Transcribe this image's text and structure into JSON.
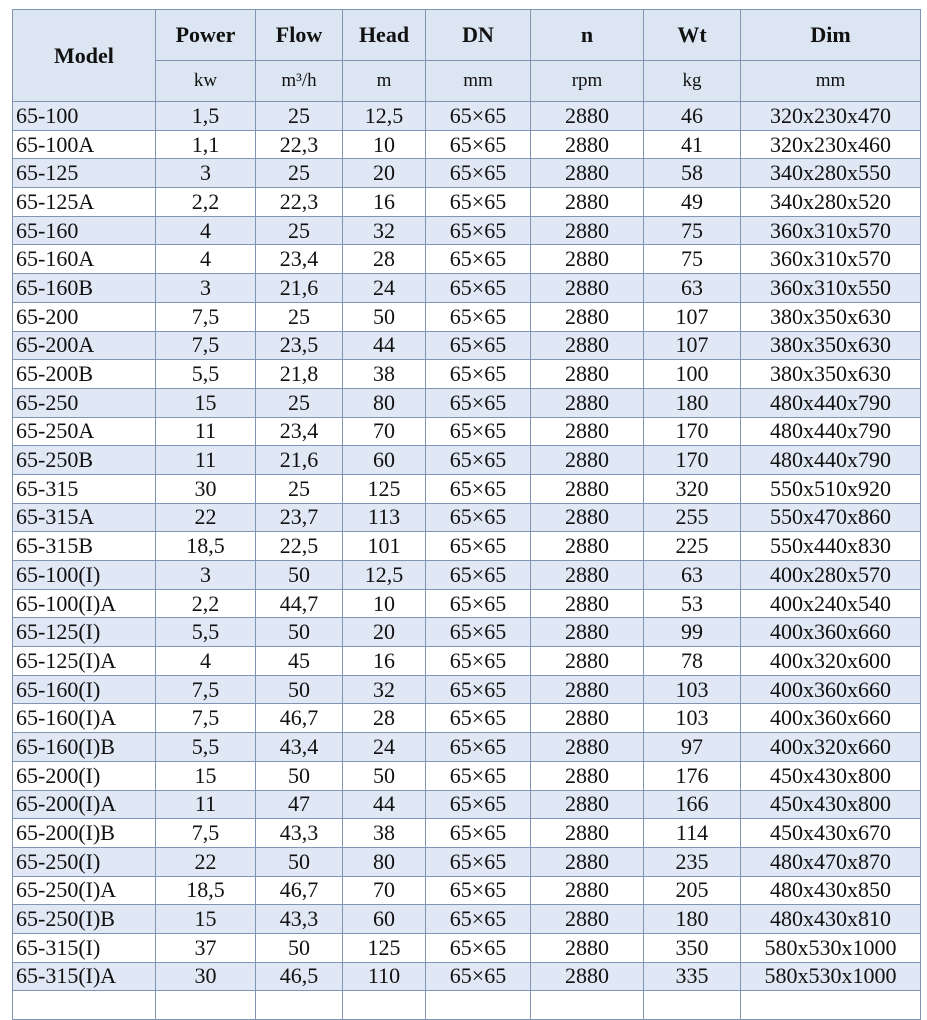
{
  "table": {
    "header": {
      "names": [
        "Model",
        "Power",
        "Flow",
        "Head",
        "DN",
        "n",
        "Wt",
        "Dim"
      ],
      "units": [
        "kw",
        "m³/h",
        "m",
        "mm",
        "rpm",
        "kg",
        "mm"
      ]
    },
    "rows": [
      [
        "65-100",
        "1,5",
        "25",
        "12,5",
        "65×65",
        "2880",
        "46",
        "320x230x470"
      ],
      [
        "65-100A",
        "1,1",
        "22,3",
        "10",
        "65×65",
        "2880",
        "41",
        "320x230x460"
      ],
      [
        "65-125",
        "3",
        "25",
        "20",
        "65×65",
        "2880",
        "58",
        "340x280x550"
      ],
      [
        "65-125A",
        "2,2",
        "22,3",
        "16",
        "65×65",
        "2880",
        "49",
        "340x280x520"
      ],
      [
        "65-160",
        "4",
        "25",
        "32",
        "65×65",
        "2880",
        "75",
        "360x310x570"
      ],
      [
        "65-160A",
        "4",
        "23,4",
        "28",
        "65×65",
        "2880",
        "75",
        "360x310x570"
      ],
      [
        "65-160B",
        "3",
        "21,6",
        "24",
        "65×65",
        "2880",
        "63",
        "360x310x550"
      ],
      [
        "65-200",
        "7,5",
        "25",
        "50",
        "65×65",
        "2880",
        "107",
        "380x350x630"
      ],
      [
        "65-200A",
        "7,5",
        "23,5",
        "44",
        "65×65",
        "2880",
        "107",
        "380x350x630"
      ],
      [
        "65-200B",
        "5,5",
        "21,8",
        "38",
        "65×65",
        "2880",
        "100",
        "380x350x630"
      ],
      [
        "65-250",
        "15",
        "25",
        "80",
        "65×65",
        "2880",
        "180",
        "480x440x790"
      ],
      [
        "65-250A",
        "11",
        "23,4",
        "70",
        "65×65",
        "2880",
        "170",
        "480x440x790"
      ],
      [
        "65-250B",
        "11",
        "21,6",
        "60",
        "65×65",
        "2880",
        "170",
        "480x440x790"
      ],
      [
        "65-315",
        "30",
        "25",
        "125",
        "65×65",
        "2880",
        "320",
        "550x510x920"
      ],
      [
        "65-315A",
        "22",
        "23,7",
        "113",
        "65×65",
        "2880",
        "255",
        "550x470x860"
      ],
      [
        "65-315B",
        "18,5",
        "22,5",
        "101",
        "65×65",
        "2880",
        "225",
        "550x440x830"
      ],
      [
        "65-100(I)",
        "3",
        "50",
        "12,5",
        "65×65",
        "2880",
        "63",
        "400x280x570"
      ],
      [
        "65-100(I)A",
        "2,2",
        "44,7",
        "10",
        "65×65",
        "2880",
        "53",
        "400x240x540"
      ],
      [
        "65-125(I)",
        "5,5",
        "50",
        "20",
        "65×65",
        "2880",
        "99",
        "400x360x660"
      ],
      [
        "65-125(I)A",
        "4",
        "45",
        "16",
        "65×65",
        "2880",
        "78",
        "400x320x600"
      ],
      [
        "65-160(I)",
        "7,5",
        "50",
        "32",
        "65×65",
        "2880",
        "103",
        "400x360x660"
      ],
      [
        "65-160(I)A",
        "7,5",
        "46,7",
        "28",
        "65×65",
        "2880",
        "103",
        "400x360x660"
      ],
      [
        "65-160(I)B",
        "5,5",
        "43,4",
        "24",
        "65×65",
        "2880",
        "97",
        "400x320x660"
      ],
      [
        "65-200(I)",
        "15",
        "50",
        "50",
        "65×65",
        "2880",
        "176",
        "450x430x800"
      ],
      [
        "65-200(I)A",
        "11",
        "47",
        "44",
        "65×65",
        "2880",
        "166",
        "450x430x800"
      ],
      [
        "65-200(I)B",
        "7,5",
        "43,3",
        "38",
        "65×65",
        "2880",
        "114",
        "450x430x670"
      ],
      [
        "65-250(I)",
        "22",
        "50",
        "80",
        "65×65",
        "2880",
        "235",
        "480x470x870"
      ],
      [
        "65-250(I)A",
        "18,5",
        "46,7",
        "70",
        "65×65",
        "2880",
        "205",
        "480x430x850"
      ],
      [
        "65-250(I)B",
        "15",
        "43,3",
        "60",
        "65×65",
        "2880",
        "180",
        "480x430x810"
      ],
      [
        "65-315(I)",
        "37",
        "50",
        "125",
        "65×65",
        "2880",
        "350",
        "580x530x1000"
      ],
      [
        "65-315(I)A",
        "30",
        "46,5",
        "110",
        "65×65",
        "2880",
        "335",
        "580x530x1000"
      ]
    ]
  }
}
